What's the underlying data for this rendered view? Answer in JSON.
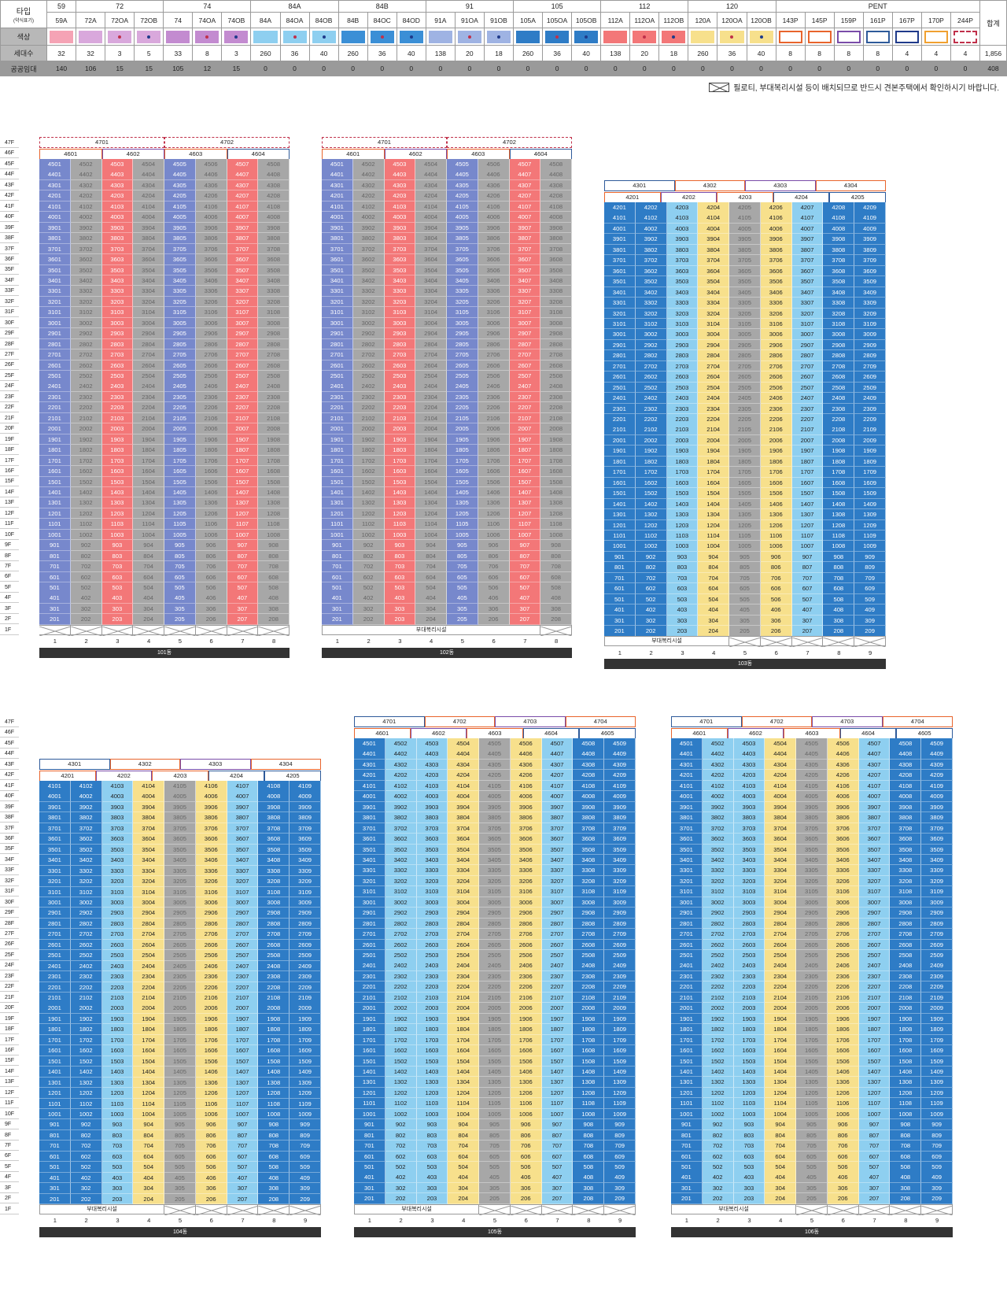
{
  "legend": {
    "row_labels": {
      "type": "타입",
      "type_sub": "(약식표기)",
      "color": "색상",
      "units": "세대수",
      "rental": "공공임대",
      "total": "합계"
    },
    "groups": [
      "59",
      "72",
      "74",
      "84A",
      "84B",
      "91",
      "105",
      "112",
      "120",
      "PENT"
    ],
    "types": [
      {
        "name": "59A",
        "color": "#f5a3b5",
        "dot": "",
        "units": "32",
        "rental": "140",
        "group": "59"
      },
      {
        "name": "72A",
        "color": "#d9a8dc",
        "dot": "",
        "units": "32",
        "rental": "106",
        "group": "72"
      },
      {
        "name": "72OA",
        "color": "#d9a8dc",
        "dot": "#c0304a",
        "units": "3",
        "rental": "15",
        "group": "72"
      },
      {
        "name": "72OB",
        "color": "#d9a8dc",
        "dot": "#1f3a8a",
        "units": "5",
        "rental": "15",
        "group": "72"
      },
      {
        "name": "74",
        "color": "#c38bd0",
        "dot": "",
        "units": "33",
        "rental": "105",
        "group": "74"
      },
      {
        "name": "74OA",
        "color": "#c38bd0",
        "dot": "#c0304a",
        "units": "8",
        "rental": "12",
        "group": "74"
      },
      {
        "name": "74OB",
        "color": "#c38bd0",
        "dot": "#1f3a8a",
        "units": "3",
        "rental": "15",
        "group": "74"
      },
      {
        "name": "84A",
        "color": "#8ecff0",
        "dot": "",
        "units": "260",
        "rental": "0",
        "group": "84A"
      },
      {
        "name": "84OA",
        "color": "#8ecff0",
        "dot": "#c0304a",
        "units": "36",
        "rental": "0",
        "group": "84A"
      },
      {
        "name": "84OB",
        "color": "#8ecff0",
        "dot": "#1f3a8a",
        "units": "40",
        "rental": "0",
        "group": "84A"
      },
      {
        "name": "84B",
        "color": "#3b8fd6",
        "dot": "",
        "units": "260",
        "rental": "0",
        "group": "84B"
      },
      {
        "name": "84OC",
        "color": "#3b8fd6",
        "dot": "#c0304a",
        "units": "36",
        "rental": "0",
        "group": "84B"
      },
      {
        "name": "84OD",
        "color": "#3b8fd6",
        "dot": "#1f3a8a",
        "units": "40",
        "rental": "0",
        "group": "84B"
      },
      {
        "name": "91A",
        "color": "#9fb3e3",
        "dot": "",
        "units": "138",
        "rental": "0",
        "group": "91"
      },
      {
        "name": "91OA",
        "color": "#9fb3e3",
        "dot": "#c0304a",
        "units": "20",
        "rental": "0",
        "group": "91"
      },
      {
        "name": "91OB",
        "color": "#9fb3e3",
        "dot": "#1f3a8a",
        "units": "18",
        "rental": "0",
        "group": "91"
      },
      {
        "name": "105A",
        "color": "#2e7cc6",
        "dot": "",
        "units": "260",
        "rental": "0",
        "group": "105"
      },
      {
        "name": "105OA",
        "color": "#2e7cc6",
        "dot": "#c0304a",
        "units": "36",
        "rental": "0",
        "group": "105"
      },
      {
        "name": "105OB",
        "color": "#2e7cc6",
        "dot": "#1f3a8a",
        "units": "40",
        "rental": "0",
        "group": "105"
      },
      {
        "name": "112A",
        "color": "#f37778",
        "dot": "",
        "units": "138",
        "rental": "0",
        "group": "112"
      },
      {
        "name": "112OA",
        "color": "#f37778",
        "dot": "#c0304a",
        "units": "20",
        "rental": "0",
        "group": "112"
      },
      {
        "name": "112OB",
        "color": "#f37778",
        "dot": "#1f3a8a",
        "units": "18",
        "rental": "0",
        "group": "112"
      },
      {
        "name": "120A",
        "color": "#f7e08c",
        "dot": "",
        "units": "260",
        "rental": "0",
        "group": "120"
      },
      {
        "name": "120OA",
        "color": "#f7e08c",
        "dot": "#c0304a",
        "units": "36",
        "rental": "0",
        "group": "120"
      },
      {
        "name": "120OB",
        "color": "#f7e08c",
        "dot": "#1f3a8a",
        "units": "40",
        "rental": "0",
        "group": "120"
      },
      {
        "name": "143P",
        "color": "#e8642c",
        "dot": "",
        "units": "8",
        "rental": "0",
        "group": "PENT",
        "outline": true
      },
      {
        "name": "145P",
        "color": "#e8642c",
        "dot": "",
        "units": "8",
        "rental": "0",
        "group": "PENT",
        "outline": true
      },
      {
        "name": "159P",
        "color": "#7a4ca8",
        "dot": "",
        "units": "8",
        "rental": "0",
        "group": "PENT",
        "outline": true
      },
      {
        "name": "161P",
        "color": "#2e5a9a",
        "dot": "",
        "units": "8",
        "rental": "0",
        "group": "PENT",
        "outline": true
      },
      {
        "name": "167P",
        "color": "#1f3a8a",
        "dot": "",
        "units": "4",
        "rental": "0",
        "group": "PENT",
        "outline": true
      },
      {
        "name": "170P",
        "color": "#f0a030",
        "dot": "",
        "units": "4",
        "rental": "0",
        "group": "PENT",
        "outline": true
      },
      {
        "name": "244P",
        "color": "#c0304a",
        "dot": "",
        "units": "4",
        "rental": "0",
        "group": "PENT",
        "outline": true,
        "dashed": true
      }
    ],
    "total_units": "1,856",
    "total_rental": "408"
  },
  "note": "필로티, 부대복리시설 등이 배치되므로 반드시 견본주택에서 확인하시기 바랍니다.",
  "buildings": [
    {
      "id": "101",
      "label": "101동",
      "lines": 8,
      "top_floor": 45,
      "facility": "",
      "piloti_lines": [
        1,
        2,
        3,
        4,
        5,
        6,
        7,
        8
      ],
      "colA": "#7788cc",
      "colB": "#a7a7a7",
      "penthouse": [
        [
          "4601",
          "4602",
          "4603",
          "4604"
        ],
        [
          "4701",
          "4702"
        ]
      ]
    },
    {
      "id": "102",
      "label": "102동",
      "lines": 8,
      "top_floor": 45,
      "facility": "부대복리시설",
      "piloti_lines": [
        1
      ],
      "colA": "#7788cc",
      "colB": "#a7a7a7",
      "penthouse": [
        [
          "4601",
          "4602",
          "4603",
          "4604"
        ],
        [
          "4701",
          "4702"
        ]
      ]
    },
    {
      "id": "103",
      "label": "103동",
      "lines": 9,
      "top_floor": 42,
      "facility": "부대복리시설",
      "piloti_lines": [],
      "colA": "#2e7cc6",
      "colB": "#8ecff0",
      "penthouse": [
        [
          "4201",
          "4202",
          "4203",
          "4204",
          "4205"
        ],
        [
          "4301",
          "4302",
          "4303",
          "4304"
        ]
      ]
    },
    {
      "id": "104",
      "label": "104동",
      "lines": 9,
      "top_floor": 41,
      "facility": "부대복리시설",
      "piloti_lines": [],
      "colA": "#2e7cc6",
      "colB": "#8ecff0",
      "penthouse": [
        [
          "4201",
          "4202",
          "4203",
          "4204",
          "4205"
        ],
        [
          "4301",
          "4302",
          "4303",
          "4304"
        ]
      ]
    },
    {
      "id": "105",
      "label": "105동",
      "lines": 9,
      "top_floor": 45,
      "facility": "부대복리시설",
      "piloti_lines": [],
      "colA": "#2e7cc6",
      "colB": "#8ecff0",
      "penthouse": [
        [
          "4601",
          "4602",
          "4603",
          "4604",
          "4605"
        ],
        [
          "4701",
          "4702",
          "4703",
          "4704"
        ]
      ]
    },
    {
      "id": "106",
      "label": "106동",
      "lines": 9,
      "top_floor": 45,
      "facility": "부대복리시설",
      "piloti_lines": [],
      "colA": "#2e7cc6",
      "colB": "#8ecff0",
      "penthouse": [
        [
          "4601",
          "4602",
          "4603",
          "4604",
          "4605"
        ],
        [
          "4701",
          "4702",
          "4703",
          "4704"
        ]
      ]
    }
  ]
}
